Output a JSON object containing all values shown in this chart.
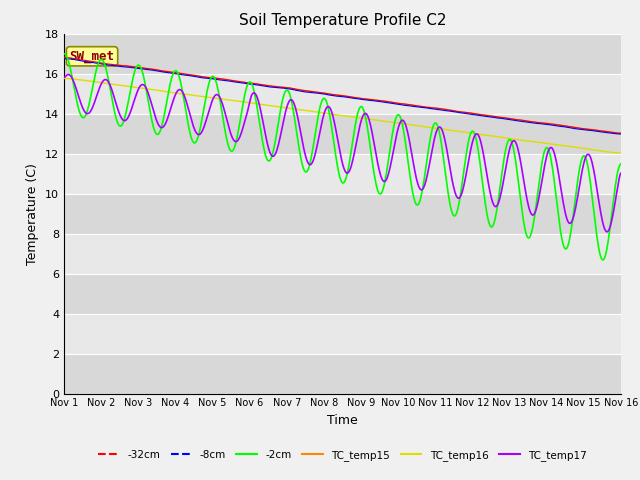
{
  "title": "Soil Temperature Profile C2",
  "xlabel": "Time",
  "ylabel": "Temperature (C)",
  "ylim": [
    0,
    18
  ],
  "yticks": [
    0,
    2,
    4,
    6,
    8,
    10,
    12,
    14,
    16,
    18
  ],
  "xtick_labels": [
    "Nov 1",
    "Nov 2",
    "Nov 3",
    "Nov 4",
    "Nov 5",
    "Nov 6",
    "Nov 7",
    "Nov 8",
    "Nov 9",
    "Nov 10",
    "Nov 11",
    "Nov 12",
    "Nov 13",
    "Nov 14",
    "Nov 15",
    "Nov 16"
  ],
  "annotation_text": "SW_met",
  "annotation_bg": "#ffff99",
  "annotation_border": "#888800",
  "annotation_text_color": "#8b0000",
  "series": {
    "neg32cm": {
      "color": "#ff0000",
      "label": "-32cm",
      "linestyle": "--"
    },
    "neg8cm": {
      "color": "#0000ff",
      "label": "-8cm",
      "linestyle": "--"
    },
    "neg2cm": {
      "color": "#00ff00",
      "label": "-2cm",
      "linestyle": "-"
    },
    "TC_temp15": {
      "color": "#ff8800",
      "label": "TC_temp15",
      "linestyle": "-"
    },
    "TC_temp16": {
      "color": "#dddd00",
      "label": "TC_temp16",
      "linestyle": "-"
    },
    "TC_temp17": {
      "color": "#aa00ff",
      "label": "TC_temp17",
      "linestyle": "-"
    }
  },
  "fig_facecolor": "#f0f0f0",
  "ax_facecolor": "#e0e0e0",
  "band_colors": [
    "#d8d8d8",
    "#e8e8e8"
  ]
}
